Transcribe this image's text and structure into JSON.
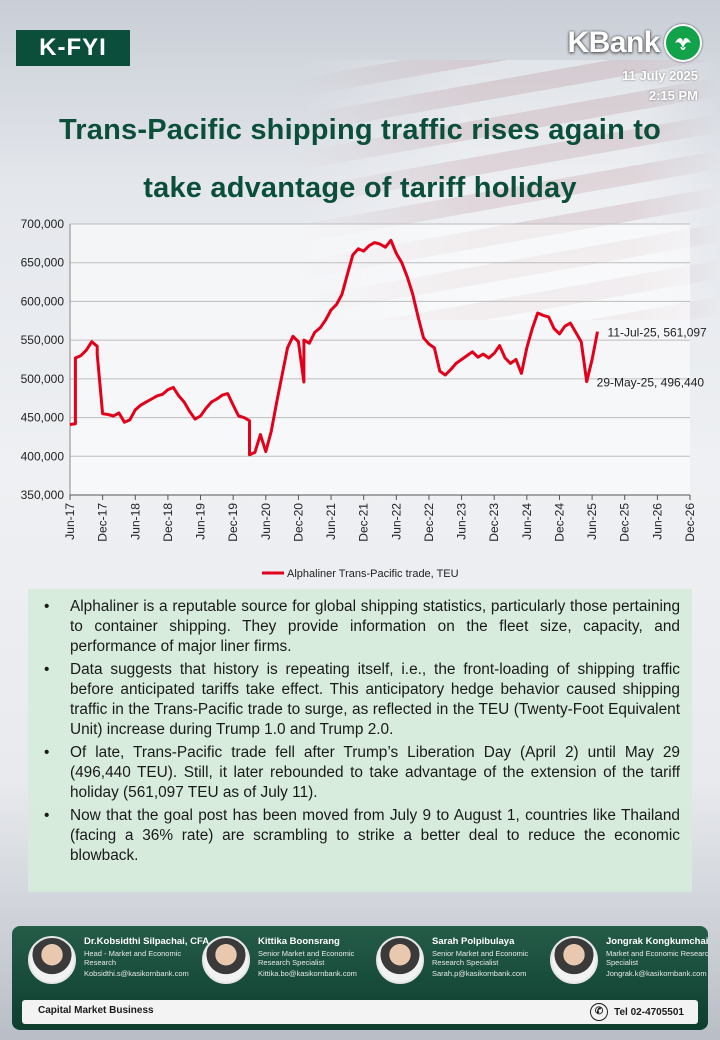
{
  "header": {
    "badge": "K-FYI",
    "brand": "KBank",
    "date": "11 July 2025",
    "time": "2:15 PM",
    "title_line1": "Trans-Pacific shipping traffic rises again to",
    "title_line2": "take advantage of tariff holiday"
  },
  "chart_data": {
    "type": "line",
    "title": "",
    "xlabel": "",
    "ylabel": "",
    "ylim": [
      350000,
      700000
    ],
    "yticks": [
      "350,000",
      "400,000",
      "450,000",
      "500,000",
      "550,000",
      "600,000",
      "650,000",
      "700,000"
    ],
    "xlim": [
      "2017-06",
      "2026-12"
    ],
    "xticks": [
      "Jun-17",
      "Dec-17",
      "Jun-18",
      "Dec-18",
      "Jun-19",
      "Dec-19",
      "Jun-20",
      "Dec-20",
      "Jun-21",
      "Dec-21",
      "Jun-22",
      "Dec-22",
      "Jun-23",
      "Dec-23",
      "Jun-24",
      "Dec-24",
      "Jun-25",
      "Dec-25",
      "Jun-26",
      "Dec-26"
    ],
    "grid": true,
    "legend": "bottom",
    "series": [
      {
        "name": "Alphaliner Trans-Pacific trade, TEU",
        "color": "#e3001b",
        "points": [
          [
            "2017-06",
            441000
          ],
          [
            "2017-07",
            442000
          ],
          [
            "2017-07",
            527000
          ],
          [
            "2017-08",
            530000
          ],
          [
            "2017-09",
            537000
          ],
          [
            "2017-10",
            548000
          ],
          [
            "2017-11",
            542000
          ],
          [
            "2017-11",
            532000
          ],
          [
            "2017-12",
            455000
          ],
          [
            "2018-01",
            454000
          ],
          [
            "2018-02",
            452000
          ],
          [
            "2018-03",
            456000
          ],
          [
            "2018-04",
            444000
          ],
          [
            "2018-05",
            447000
          ],
          [
            "2018-06",
            460000
          ],
          [
            "2018-07",
            466000
          ],
          [
            "2018-08",
            470000
          ],
          [
            "2018-09",
            474000
          ],
          [
            "2018-10",
            478000
          ],
          [
            "2018-11",
            480000
          ],
          [
            "2018-12",
            486000
          ],
          [
            "2019-01",
            489000
          ],
          [
            "2019-02",
            478000
          ],
          [
            "2019-03",
            470000
          ],
          [
            "2019-04",
            458000
          ],
          [
            "2019-05",
            448000
          ],
          [
            "2019-06",
            452000
          ],
          [
            "2019-07",
            462000
          ],
          [
            "2019-08",
            470000
          ],
          [
            "2019-09",
            474000
          ],
          [
            "2019-10",
            479000
          ],
          [
            "2019-11",
            481000
          ],
          [
            "2019-12",
            466000
          ],
          [
            "2020-01",
            452000
          ],
          [
            "2020-02",
            450000
          ],
          [
            "2020-03",
            446000
          ],
          [
            "2020-03",
            402000
          ],
          [
            "2020-04",
            405000
          ],
          [
            "2020-05",
            428000
          ],
          [
            "2020-06",
            406000
          ],
          [
            "2020-07",
            432000
          ],
          [
            "2020-08",
            470000
          ],
          [
            "2020-09",
            505000
          ],
          [
            "2020-10",
            540000
          ],
          [
            "2020-11",
            555000
          ],
          [
            "2020-12",
            548000
          ],
          [
            "2021-01",
            496000
          ],
          [
            "2021-01",
            550000
          ],
          [
            "2021-02",
            546000
          ],
          [
            "2021-03",
            560000
          ],
          [
            "2021-04",
            566000
          ],
          [
            "2021-05",
            576000
          ],
          [
            "2021-06",
            589000
          ],
          [
            "2021-07",
            596000
          ],
          [
            "2021-08",
            609000
          ],
          [
            "2021-09",
            635000
          ],
          [
            "2021-10",
            660000
          ],
          [
            "2021-11",
            668000
          ],
          [
            "2021-12",
            665000
          ],
          [
            "2022-01",
            672000
          ],
          [
            "2022-02",
            676000
          ],
          [
            "2022-03",
            674000
          ],
          [
            "2022-04",
            670000
          ],
          [
            "2022-05",
            679000
          ],
          [
            "2022-06",
            662000
          ],
          [
            "2022-07",
            650000
          ],
          [
            "2022-08",
            632000
          ],
          [
            "2022-09",
            610000
          ],
          [
            "2022-10",
            580000
          ],
          [
            "2022-11",
            553000
          ],
          [
            "2022-12",
            545000
          ],
          [
            "2023-01",
            540000
          ],
          [
            "2023-02",
            510000
          ],
          [
            "2023-03",
            505000
          ],
          [
            "2023-04",
            512000
          ],
          [
            "2023-05",
            520000
          ],
          [
            "2023-06",
            525000
          ],
          [
            "2023-07",
            530000
          ],
          [
            "2023-08",
            535000
          ],
          [
            "2023-09",
            528000
          ],
          [
            "2023-10",
            532000
          ],
          [
            "2023-11",
            527000
          ],
          [
            "2023-12",
            533000
          ],
          [
            "2024-01",
            543000
          ],
          [
            "2024-02",
            527000
          ],
          [
            "2024-03",
            520000
          ],
          [
            "2024-04",
            525000
          ],
          [
            "2024-05",
            507000
          ],
          [
            "2024-06",
            540000
          ],
          [
            "2024-07",
            565000
          ],
          [
            "2024-08",
            585000
          ],
          [
            "2024-09",
            582000
          ],
          [
            "2024-10",
            580000
          ],
          [
            "2024-11",
            565000
          ],
          [
            "2024-12",
            558000
          ],
          [
            "2025-01",
            568000
          ],
          [
            "2025-02",
            572000
          ],
          [
            "2025-03",
            560000
          ],
          [
            "2025-04",
            548000
          ],
          [
            "2025-05",
            496440
          ],
          [
            "2025-06",
            525000
          ],
          [
            "2025-07",
            561097
          ]
        ]
      }
    ],
    "annotations": [
      {
        "text": "11-Jul-25, 561,097",
        "x": "2025-07",
        "y": 561097
      },
      {
        "text": "29-May-25, 496,440",
        "x": "2025-05",
        "y": 496440
      }
    ]
  },
  "bullets": [
    "Alphaliner is a reputable source for global shipping statistics, particularly those pertaining to container shipping. They provide information on the fleet size, capacity, and performance of major liner firms.",
    "Data suggests that history is repeating itself, i.e., the front-loading of shipping traffic before anticipated tariffs take effect. This anticipatory hedge behavior caused shipping traffic in the Trans-Pacific trade to surge, as reflected in the TEU (Twenty-Foot Equivalent Unit) increase during Trump 1.0 and Trump 2.0.",
    "Of late, Trans-Pacific trade fell after Trump’s Liberation Day (April 2) until May 29 (496,440 TEU). Still, it later rebounded to take advantage of the extension of the tariff holiday (561,097 TEU as of July 11).",
    "Now that the goal post has been moved from July 9 to August 1, countries like Thailand (facing a 36% rate) are scrambling to strike a better deal to reduce the economic blowback."
  ],
  "bullet_symbol": "•",
  "team": [
    {
      "name": "Dr.Kobsidthi Silpachai, CFA",
      "role": "Head - Market and Economic Research",
      "email": "Kobsidthi.s@kasikornbank.com"
    },
    {
      "name": "Kittika Boonsrang",
      "role": "Senior Market and Economic Research Specialist",
      "email": "Kittika.bo@kasikornbank.com"
    },
    {
      "name": "Sarah Polpibulaya",
      "role": "Senior Market and Economic Research Specialist",
      "email": "Sarah.p@kasikornbank.com"
    },
    {
      "name": "Jongrak Kongkumchai",
      "role": "Market and Economic Research Specialist",
      "email": "Jongrak.k@kasikornbank.com"
    }
  ],
  "footer": {
    "left": "Capital Market Business",
    "phone": "Tel 02-4705501"
  }
}
